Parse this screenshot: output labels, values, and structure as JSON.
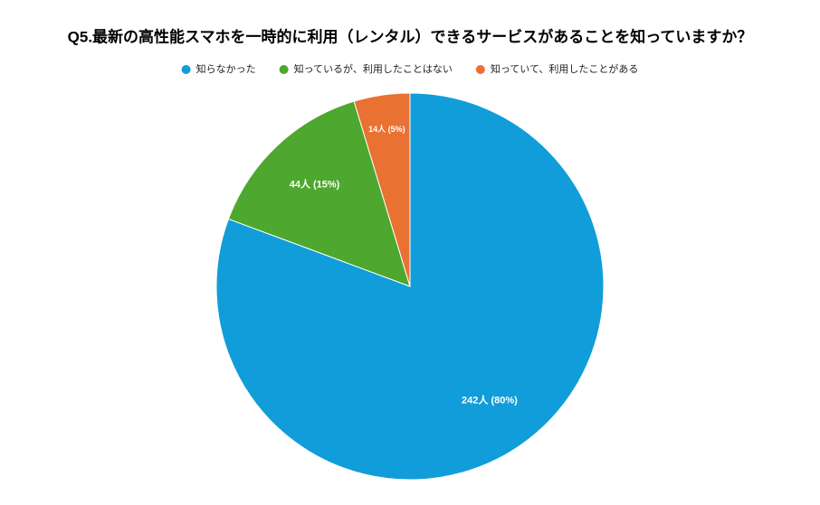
{
  "chart_data": {
    "type": "pie",
    "title": "Q5.最新の高性能スマホを一時的に利用（レンタル）できるサービスがあることを知っていますか？",
    "categories": [
      "知らなかった",
      "知っているが、利用したことはない",
      "知っていて、利用したことがある"
    ],
    "values": [
      242,
      44,
      14
    ],
    "value_labels": [
      "242人 (80%)",
      "44人 (15%)",
      "14人 (5%)"
    ],
    "colors": [
      "#109dd9",
      "#4ea72e",
      "#e97132"
    ],
    "legend": "top"
  }
}
